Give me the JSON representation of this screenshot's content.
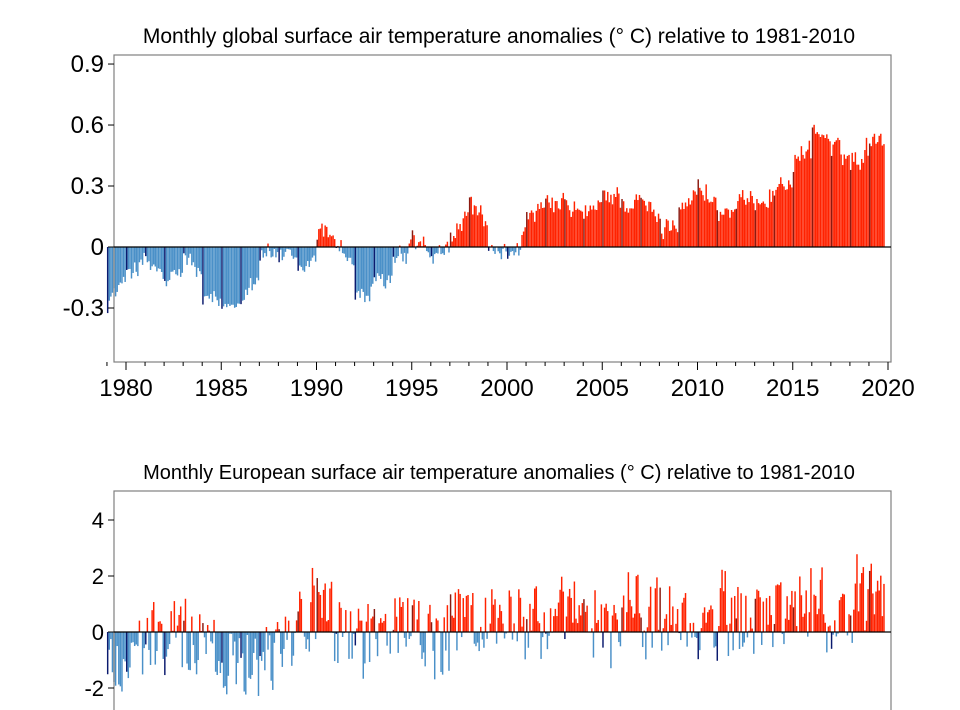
{
  "chart_data": [
    {
      "type": "bar",
      "title": "Monthly  global surface air temperature anomalies (° C) relative to 1981-2010",
      "xlabel": "",
      "ylabel": "",
      "start": "1979-01",
      "ylim": [
        -0.55,
        0.93
      ],
      "xlim": [
        1978.8,
        2020.0
      ],
      "yticks": [
        0.9,
        0.6,
        0.3,
        0,
        -0.3
      ],
      "ytick_labels": [
        "0.9",
        "0.6",
        "0.3",
        "0",
        "-0.3"
      ],
      "xticks": [
        1980,
        1985,
        1990,
        1995,
        2000,
        2005,
        2010,
        2015,
        2020
      ],
      "xtick_labels": [
        "1980",
        "1985",
        "1990",
        "1995",
        "2000",
        "2005",
        "2010",
        "2015",
        "2020"
      ],
      "grid": false,
      "colors": {
        "positive": "#ff2200",
        "negative": "#4a90c8",
        "january_positive": "#8b1a10",
        "january_negative": "#0a1a6e"
      },
      "annual_means": [
        -0.26,
        -0.1,
        -0.08,
        -0.2,
        -0.04,
        -0.27,
        -0.3,
        -0.22,
        -0.03,
        -0.04,
        -0.15,
        0.08,
        0.04,
        -0.25,
        -0.2,
        -0.08,
        0.03,
        -0.08,
        0.05,
        0.24,
        -0.05,
        -0.03,
        0.14,
        0.2,
        0.2,
        0.14,
        0.27,
        0.22,
        0.21,
        0.08,
        0.22,
        0.29,
        0.16,
        0.2,
        0.24,
        0.28,
        0.41,
        0.58,
        0.47,
        0.42,
        0.55
      ]
    },
    {
      "type": "bar",
      "title": "Monthly  European surface air temperature anomalies (° C) relative to 1981-2010",
      "xlabel": "",
      "ylabel": "",
      "start": "1979-01",
      "ylim": [
        -2.75,
        5.0
      ],
      "xlim": [
        1978.8,
        2020.0
      ],
      "yticks": [
        4,
        2,
        0,
        -2
      ],
      "ytick_labels": [
        "4",
        "2",
        "0",
        "-2"
      ],
      "grid": false,
      "colors": {
        "positive": "#ff2200",
        "negative": "#4a90c8",
        "january_positive": "#8b1a10",
        "january_negative": "#0a1a6e"
      },
      "annual_means": [
        -1.3,
        -0.8,
        -0.4,
        -0.3,
        0.0,
        -0.5,
        -1.2,
        -0.6,
        -0.9,
        0.1,
        0.6,
        0.8,
        -0.2,
        0.1,
        -0.3,
        0.4,
        0.2,
        -0.6,
        0.2,
        0.2,
        0.4,
        0.6,
        0.2,
        0.6,
        0.3,
        0.3,
        0.2,
        0.7,
        0.8,
        0.5,
        0.3,
        -0.2,
        0.6,
        0.5,
        0.3,
        0.9,
        0.8,
        0.8,
        0.6,
        0.9,
        1.1
      ]
    }
  ]
}
